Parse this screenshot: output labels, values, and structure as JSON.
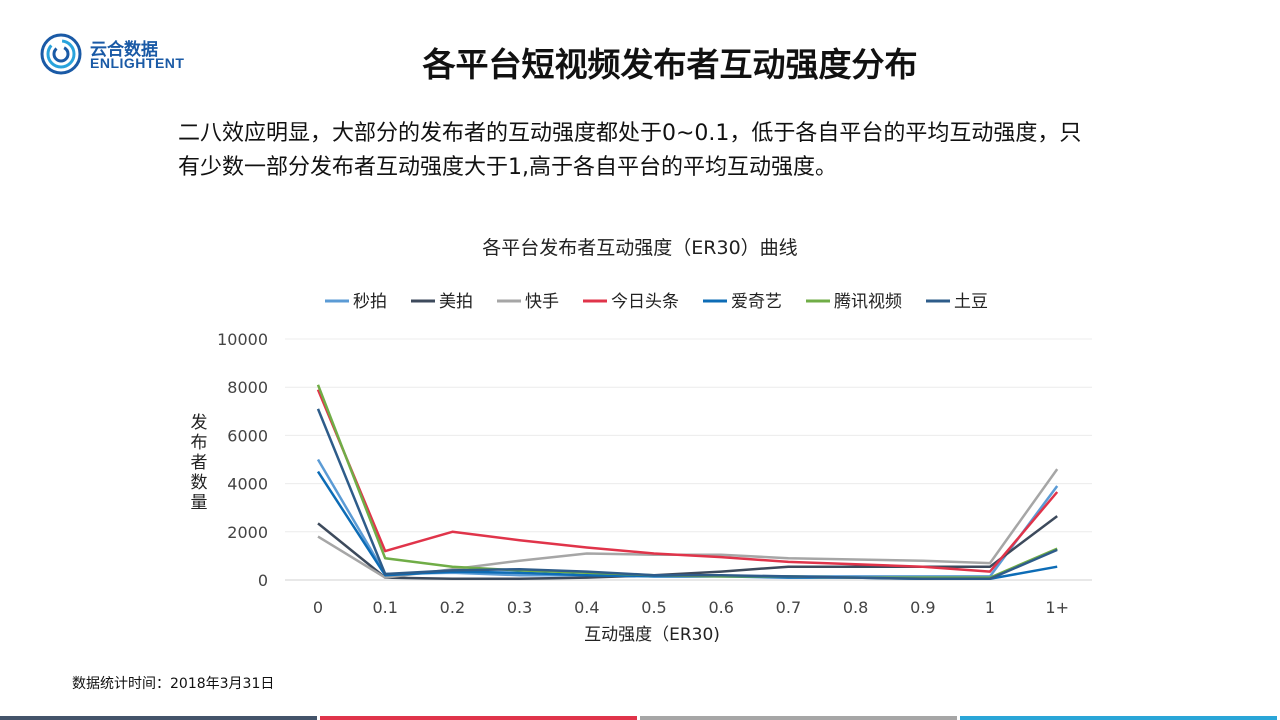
{
  "logo": {
    "cn": "云合数据",
    "en": "ENLIGHTENT"
  },
  "page_title": "各平台短视频发布者互动强度分布",
  "summary": "二八效应明显，大部分的发布者的互动强度都处于0~0.1，低于各自平台的平均互动强度，只有少数一部分发布者互动强度大于1,高于各自平台的平均互动强度。",
  "footnote": "数据统计时间：2018年3月31日",
  "bottom_bar_colors": [
    "#44546a",
    "#e0344a",
    "#a6a6a6",
    "#2aa6d8"
  ],
  "chart_data": {
    "type": "line",
    "title": "各平台发布者互动强度（ER30）曲线",
    "xlabel": "互动强度（ER30)",
    "ylabel": "发布者数量",
    "categories": [
      "0",
      "0.1",
      "0.2",
      "0.3",
      "0.4",
      "0.5",
      "0.6",
      "0.7",
      "0.8",
      "0.9",
      "1",
      "1+"
    ],
    "ylim": [
      0,
      10000
    ],
    "yticks": [
      "0",
      "2000",
      "4000",
      "6000",
      "8000",
      "10000"
    ],
    "grid": true,
    "legend_position": "top",
    "series": [
      {
        "name": "秒拍",
        "color": "#5b9bd5",
        "values": [
          5000,
          250,
          300,
          200,
          200,
          150,
          150,
          150,
          150,
          150,
          150,
          3900
        ]
      },
      {
        "name": "美拍",
        "color": "#3d4a5c",
        "values": [
          2350,
          100,
          50,
          50,
          100,
          200,
          350,
          550,
          550,
          550,
          550,
          2650
        ]
      },
      {
        "name": "快手",
        "color": "#a6a6a6",
        "values": [
          1800,
          100,
          450,
          800,
          1100,
          1050,
          1050,
          900,
          850,
          800,
          700,
          4600
        ]
      },
      {
        "name": "今日头条",
        "color": "#e0344a",
        "values": [
          7900,
          1200,
          2000,
          1650,
          1350,
          1100,
          950,
          750,
          650,
          550,
          350,
          3650
        ]
      },
      {
        "name": "爱奇艺",
        "color": "#0d6cb6",
        "values": [
          4500,
          200,
          350,
          300,
          200,
          150,
          150,
          100,
          100,
          50,
          50,
          550
        ]
      },
      {
        "name": "腾讯视频",
        "color": "#70ad47",
        "values": [
          8100,
          900,
          550,
          400,
          300,
          200,
          150,
          150,
          100,
          100,
          100,
          1300
        ]
      },
      {
        "name": "土豆",
        "color": "#2e5c8a",
        "values": [
          7100,
          250,
          400,
          450,
          350,
          200,
          200,
          150,
          100,
          50,
          50,
          1250
        ]
      }
    ]
  }
}
